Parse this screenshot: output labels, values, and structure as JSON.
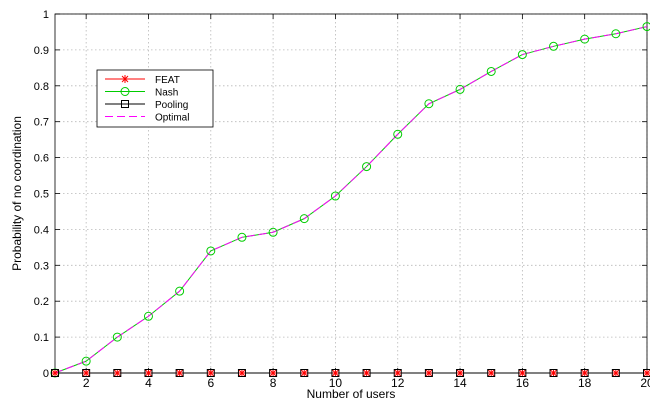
{
  "chart_data": {
    "type": "line",
    "title": "",
    "xlabel": "Number of users",
    "ylabel": "Probability of no coordination",
    "xlim": [
      1,
      20
    ],
    "ylim": [
      0,
      1
    ],
    "xticks": [
      2,
      4,
      6,
      8,
      10,
      12,
      14,
      16,
      18,
      20
    ],
    "yticks": [
      0,
      0.1,
      0.2,
      0.3,
      0.4,
      0.5,
      0.6,
      0.7,
      0.8,
      0.9,
      1
    ],
    "ytick_labels": [
      "0",
      "0.1",
      "0.2",
      "0.3",
      "0.4",
      "0.5",
      "0.6",
      "0.7",
      "0.8",
      "0.9",
      "1"
    ],
    "grid": true,
    "legend_position": "upper-left",
    "x": [
      1,
      2,
      3,
      4,
      5,
      6,
      7,
      8,
      9,
      10,
      11,
      12,
      13,
      14,
      15,
      16,
      17,
      18,
      19,
      20
    ],
    "series": [
      {
        "name": "FEAT",
        "values": [
          0,
          0,
          0,
          0,
          0,
          0,
          0,
          0,
          0,
          0,
          0,
          0,
          0,
          0,
          0,
          0,
          0,
          0,
          0,
          0
        ],
        "color": "#ff0000",
        "line_style": "solid",
        "marker": "asterisk"
      },
      {
        "name": "Nash",
        "values": [
          0,
          0.033,
          0.1,
          0.158,
          0.228,
          0.34,
          0.378,
          0.392,
          0.43,
          0.493,
          0.575,
          0.665,
          0.75,
          0.79,
          0.84,
          0.887,
          0.91,
          0.93,
          0.945,
          0.965
        ],
        "color": "#00cc00",
        "line_style": "solid",
        "marker": "circle"
      },
      {
        "name": "Pooling",
        "values": [
          0,
          0,
          0,
          0,
          0,
          0,
          0,
          0,
          0,
          0,
          0,
          0,
          0,
          0,
          0,
          0,
          0,
          0,
          0,
          0
        ],
        "color": "#000000",
        "line_style": "solid",
        "marker": "square"
      },
      {
        "name": "Optimal",
        "values": [
          0,
          0.033,
          0.1,
          0.158,
          0.228,
          0.34,
          0.378,
          0.392,
          0.43,
          0.493,
          0.575,
          0.665,
          0.75,
          0.79,
          0.84,
          0.887,
          0.91,
          0.93,
          0.945,
          0.965
        ],
        "color": "#ff00ff",
        "line_style": "dashed",
        "marker": "none"
      }
    ]
  }
}
